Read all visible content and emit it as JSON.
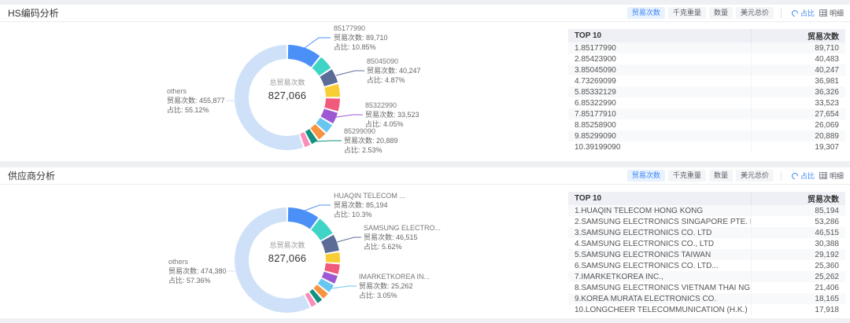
{
  "accent": "#3d86f5",
  "palette": [
    "#4a90f7",
    "#3fd4c5",
    "#5b6d97",
    "#f7ce33",
    "#f05a7b",
    "#9c59d3",
    "#69c6f0",
    "#f79442",
    "#129180",
    "#f78fb9"
  ],
  "others_color": "#cfe1f9",
  "panels": [
    {
      "title": "HS编码分析",
      "toolbar": {
        "metrics": [
          "贸易次数",
          "千克重量",
          "数量",
          "美元总价"
        ],
        "active": "贸易次数",
        "ratio_label": "占比",
        "detail_label": "明细"
      },
      "center": {
        "label": "总贸易次数",
        "value": "827,066"
      },
      "callouts": {
        "c1": {
          "name": "85177990",
          "trade": "贸易次数: 89,710",
          "pct": "占比: 10.85%"
        },
        "c2": {
          "name": "85045090",
          "trade": "贸易次数: 40,247",
          "pct": "占比: 4.87%"
        },
        "c3": {
          "name": "85322990",
          "trade": "贸易次数: 33,523",
          "pct": "占比: 4.05%"
        },
        "c4": {
          "name": "85299090",
          "trade": "贸易次数: 20,889",
          "pct": "占比: 2.53%"
        },
        "others": {
          "name": "others",
          "trade": "贸易次数: 455,877",
          "pct": "占比: 55.12%"
        }
      },
      "table": {
        "headers": [
          "TOP 10",
          "贸易次数"
        ],
        "rows": [
          [
            "1.85177990",
            "89,710"
          ],
          [
            "2.85423900",
            "40,483"
          ],
          [
            "3.85045090",
            "40,247"
          ],
          [
            "4.73269099",
            "36,981"
          ],
          [
            "5.85332129",
            "36,326"
          ],
          [
            "6.85322990",
            "33,523"
          ],
          [
            "7.85177910",
            "27,654"
          ],
          [
            "8.85258900",
            "26,069"
          ],
          [
            "9.85299090",
            "20,889"
          ],
          [
            "10.39199090",
            "19,307"
          ]
        ]
      },
      "chart_data": {
        "type": "pie",
        "title": "总贸易次数",
        "total": 827066,
        "categories": [
          "85177990",
          "85423900",
          "85045090",
          "73269099",
          "85332129",
          "85322990",
          "85177910",
          "85258900",
          "85299090",
          "39199090",
          "others"
        ],
        "values": [
          89710,
          40483,
          40247,
          36981,
          36326,
          33523,
          27654,
          26069,
          20889,
          19307,
          455877
        ],
        "percent_labels": [
          "10.85%",
          "4.89%",
          "4.87%",
          "4.47%",
          "4.39%",
          "4.05%",
          "3.34%",
          "3.15%",
          "2.53%",
          "2.33%",
          "55.12%"
        ]
      }
    },
    {
      "title": "供应商分析",
      "toolbar": {
        "metrics": [
          "贸易次数",
          "千克重量",
          "数量",
          "美元总价"
        ],
        "active": "贸易次数",
        "ratio_label": "占比",
        "detail_label": "明细"
      },
      "center": {
        "label": "总贸易次数",
        "value": "827,066"
      },
      "callouts": {
        "c1": {
          "name": "HUAQIN TELECOM ...",
          "trade": "贸易次数: 85,194",
          "pct": "占比: 10.3%"
        },
        "c2": {
          "name": "SAMSUNG ELECTRO...",
          "trade": "贸易次数: 46,515",
          "pct": "占比: 5.62%"
        },
        "c3": {
          "name": "IMARKETKOREA IN...",
          "trade": "贸易次数: 25,262",
          "pct": "占比: 3.05%"
        },
        "others": {
          "name": "others",
          "trade": "贸易次数: 474,380",
          "pct": "占比: 57.36%"
        }
      },
      "table": {
        "headers": [
          "TOP 10",
          "贸易次数"
        ],
        "rows": [
          [
            "1.HUAQIN TELECOM HONG KONG",
            "85,194"
          ],
          [
            "2.SAMSUNG ELECTRONICS SINGAPORE PTE. LTD",
            "53,286"
          ],
          [
            "3.SAMSUNG ELECTRONICS CO. LTD",
            "46,515"
          ],
          [
            "4.SAMSUNG ELECTRONICS CO., LTD",
            "30,388"
          ],
          [
            "5.SAMSUNG ELECTRONICS TAIWAN",
            "29,192"
          ],
          [
            "6.SAMSUNG ELECTRONICS CO. LTD...",
            "25,360"
          ],
          [
            "7.IMARKETKOREA INC.,",
            "25,262"
          ],
          [
            "8.SAMSUNG ELECTRONICS VIETNAM THAI NG",
            "21,406"
          ],
          [
            "9.KOREA MURATA ELECTRONICS CO.",
            "18,165"
          ],
          [
            "10.LONGCHEER TELECOMMUNICATION (H.K.)",
            "17,918"
          ]
        ]
      },
      "chart_data": {
        "type": "pie",
        "title": "总贸易次数",
        "total": 827066,
        "categories": [
          "HUAQIN TELECOM HONG KONG",
          "SAMSUNG ELECTRONICS SINGAPORE PTE. LTD",
          "SAMSUNG ELECTRONICS CO. LTD",
          "SAMSUNG ELECTRONICS CO., LTD",
          "SAMSUNG ELECTRONICS TAIWAN",
          "SAMSUNG ELECTRONICS CO. LTD...",
          "IMARKETKOREA INC.,",
          "SAMSUNG ELECTRONICS VIETNAM THAI NG",
          "KOREA MURATA ELECTRONICS CO.",
          "LONGCHEER TELECOMMUNICATION (H.K.)",
          "others"
        ],
        "values": [
          85194,
          53286,
          46515,
          30388,
          29192,
          25360,
          25262,
          21406,
          18165,
          17918,
          474380
        ],
        "percent_labels": [
          "10.3%",
          "6.44%",
          "5.62%",
          "3.67%",
          "3.53%",
          "3.07%",
          "3.05%",
          "2.59%",
          "2.20%",
          "2.17%",
          "57.36%"
        ]
      }
    }
  ]
}
